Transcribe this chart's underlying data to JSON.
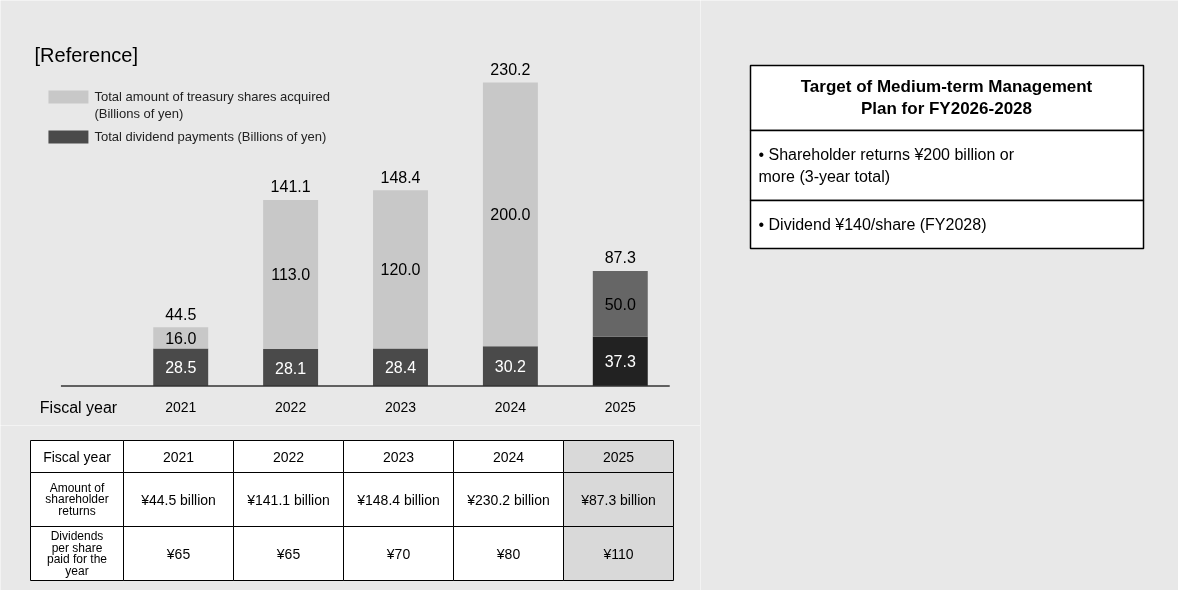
{
  "chart_data": [
    {
      "type": "bar",
      "title": "[Reference]",
      "xlabel": "Fiscal year",
      "categories": [
        "2021",
        "2022",
        "2023",
        "2024",
        "2025"
      ],
      "stacked": true,
      "data_labels": true,
      "legend": "top left",
      "series": [
        {
          "name": "Total dividend payments (Billions of yen)",
          "color": "#4a4a4a",
          "colors": [
            "#4a4a4a",
            "#4a4a4a",
            "#4a4a4a",
            "#4a4a4a",
            "#222222"
          ],
          "values": [
            28.5,
            28.1,
            28.4,
            30.2,
            37.3
          ]
        },
        {
          "name": "Total amount of treasury shares acquired (Billions of yen)",
          "color": "#c8c8c8",
          "colors": [
            "#c8c8c8",
            "#c8c8c8",
            "#c8c8c8",
            "#c8c8c8",
            "#666666"
          ],
          "values": [
            16.0,
            113.0,
            120.0,
            200.0,
            50.0
          ],
          "value_labels": [
            "16.0",
            "113.0",
            "120.0",
            "200.0",
            "50.0"
          ]
        }
      ],
      "totals": [
        "44.5",
        "141.1",
        "148.4",
        "230.2",
        "87.3"
      ]
    },
    {
      "type": "heatmap",
      "xlabel": "Fiscal year",
      "categories": [
        "2021",
        "2022",
        "2023",
        "2024",
        "2025"
      ],
      "y_categories": [
        "Amount of shareholder returns",
        "Dividends per share paid for the year"
      ],
      "cells": [
        [
          44.5,
          141.1,
          148.4,
          230.2,
          87.3
        ],
        [
          65,
          65,
          70,
          80,
          110
        ]
      ],
      "cell_labels": [
        [
          "¥44.5 billion",
          "¥141.1 billion",
          "¥148.4 billion",
          "¥230.2 billion",
          "¥87.3 billion"
        ],
        [
          "¥65",
          "¥65",
          "¥70",
          "¥80",
          "¥110"
        ]
      ]
    },
    {
      "type": "other",
      "title": "Target of Medium-term Management Plan for FY2026-2028",
      "annotations": [
        "• Shareholder returns ¥200 billion or more (3-year total)",
        "• Dividend ¥140/share (FY2028)"
      ]
    }
  ]
}
